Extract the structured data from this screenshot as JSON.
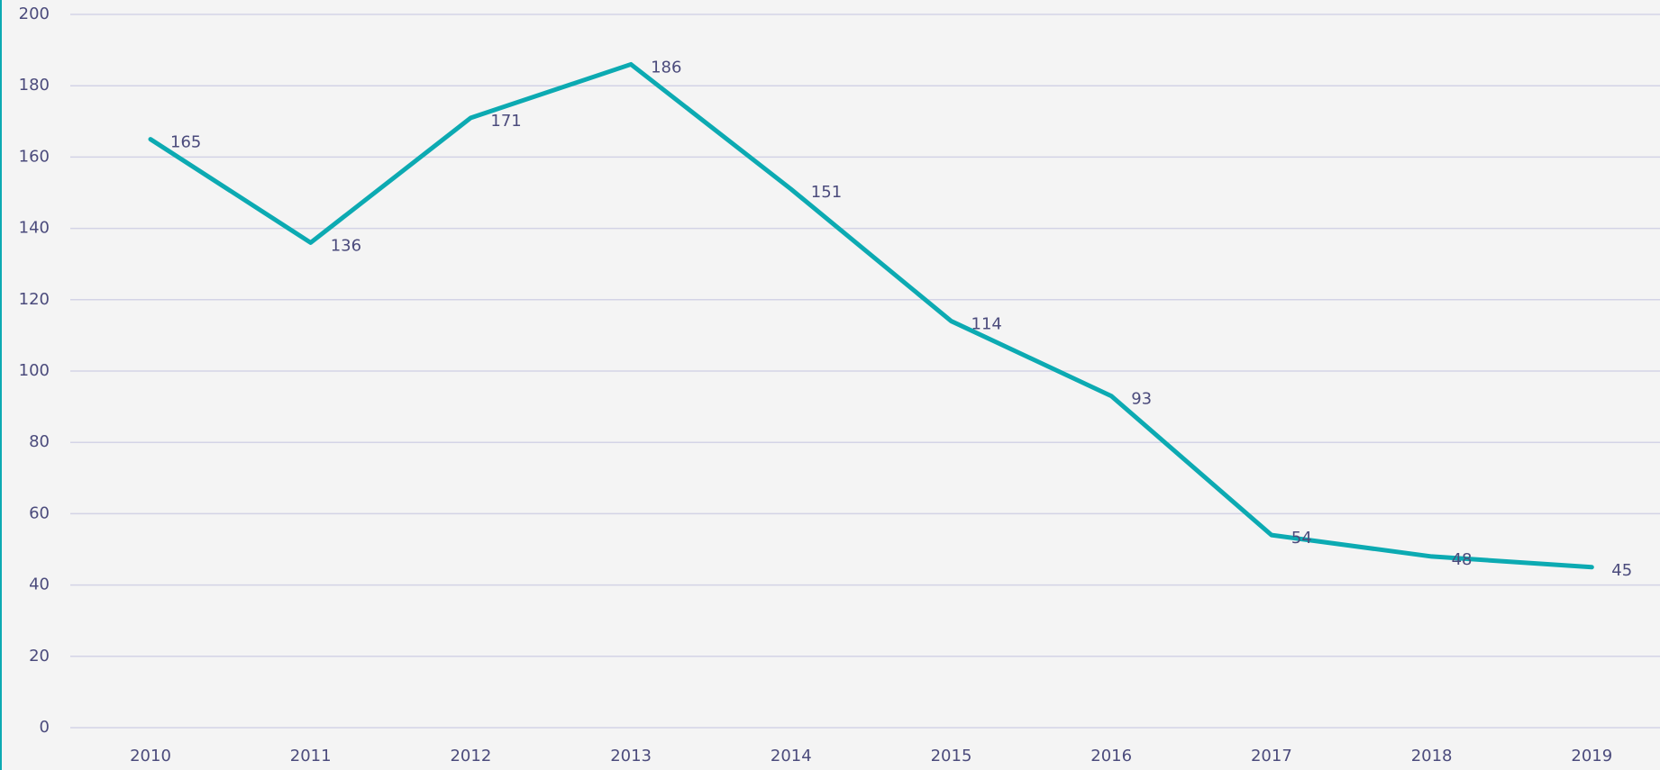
{
  "chart_data": {
    "type": "line",
    "categories": [
      "2010",
      "2011",
      "2012",
      "2013",
      "2014",
      "2015",
      "2016",
      "2017",
      "2018",
      "2019"
    ],
    "values": [
      165,
      136,
      171,
      186,
      151,
      114,
      93,
      54,
      48,
      45
    ],
    "color": "#0caab2",
    "ylim": [
      0,
      200
    ],
    "yticks": [
      0,
      20,
      40,
      60,
      80,
      100,
      120,
      140,
      160,
      180,
      200
    ],
    "grid": true
  }
}
